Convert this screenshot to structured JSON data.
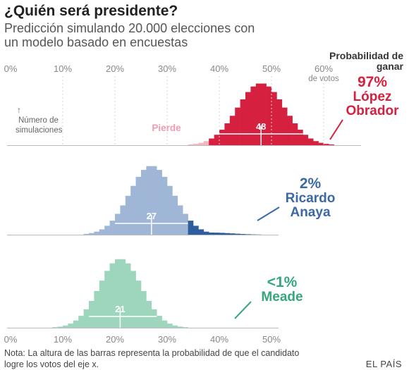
{
  "header": {
    "title": "¿Quién será presidente?",
    "subtitle": "Predicción simulando 20.000 elecciones con un modelo basado en encuestas"
  },
  "legend": {
    "probability_title": "Probabilidad de ganar",
    "sims_label_1": "Número de",
    "sims_label_2": "simulaciones",
    "lose_label": "Pierde",
    "votes_label": "de votos"
  },
  "candidates": [
    {
      "pct": "97%",
      "name1": "López",
      "name2": "Obrador",
      "color": "#d5203f"
    },
    {
      "pct": "2%",
      "name1": "Ricardo",
      "name2": "Anaya",
      "color": "#3b69a5"
    },
    {
      "pct": "<1%",
      "name1": "Meade",
      "name2": "",
      "color": "#36a77d"
    }
  ],
  "footer": {
    "note": "Nota: La altura de las barras representa la probabilidad de que el candidato logre los votos del eje x.",
    "brand": "EL PAÍS"
  },
  "chart_data": [
    {
      "type": "bar",
      "candidate": "López Obrador",
      "xlabel": "% de votos",
      "xlim": [
        0,
        67
      ],
      "x_ticks": [
        "0%",
        "10%",
        "20%",
        "30%",
        "40%",
        "50%",
        "60%"
      ],
      "median": 48,
      "interval": [
        40,
        56
      ],
      "distribution": {
        "center": 48,
        "sd": 4.5
      },
      "win_threshold": 38,
      "colors": {
        "win": "#d5203f",
        "lose": "#f3b5c0"
      },
      "median_label": "48"
    },
    {
      "type": "bar",
      "candidate": "Ricardo Anaya",
      "xlim": [
        0,
        52
      ],
      "x_ticks": [],
      "median": 27,
      "interval": [
        20,
        34
      ],
      "distribution": {
        "center": 27,
        "sd": 4.2
      },
      "win_threshold": 34,
      "colors": {
        "win": "#2e5e9e",
        "lose": "#9fb6d6"
      },
      "median_label": "27"
    },
    {
      "type": "bar",
      "candidate": "Meade",
      "xlim": [
        0,
        52
      ],
      "x_ticks": [
        "0%",
        "10%",
        "20%",
        "30%",
        "40%",
        "50%"
      ],
      "median": 21,
      "interval": [
        15,
        28
      ],
      "distribution": {
        "center": 21,
        "sd": 4.0
      },
      "win_threshold": 40,
      "colors": {
        "win": "#2f9a70",
        "lose": "#9dd6bd"
      },
      "median_label": "21"
    }
  ]
}
